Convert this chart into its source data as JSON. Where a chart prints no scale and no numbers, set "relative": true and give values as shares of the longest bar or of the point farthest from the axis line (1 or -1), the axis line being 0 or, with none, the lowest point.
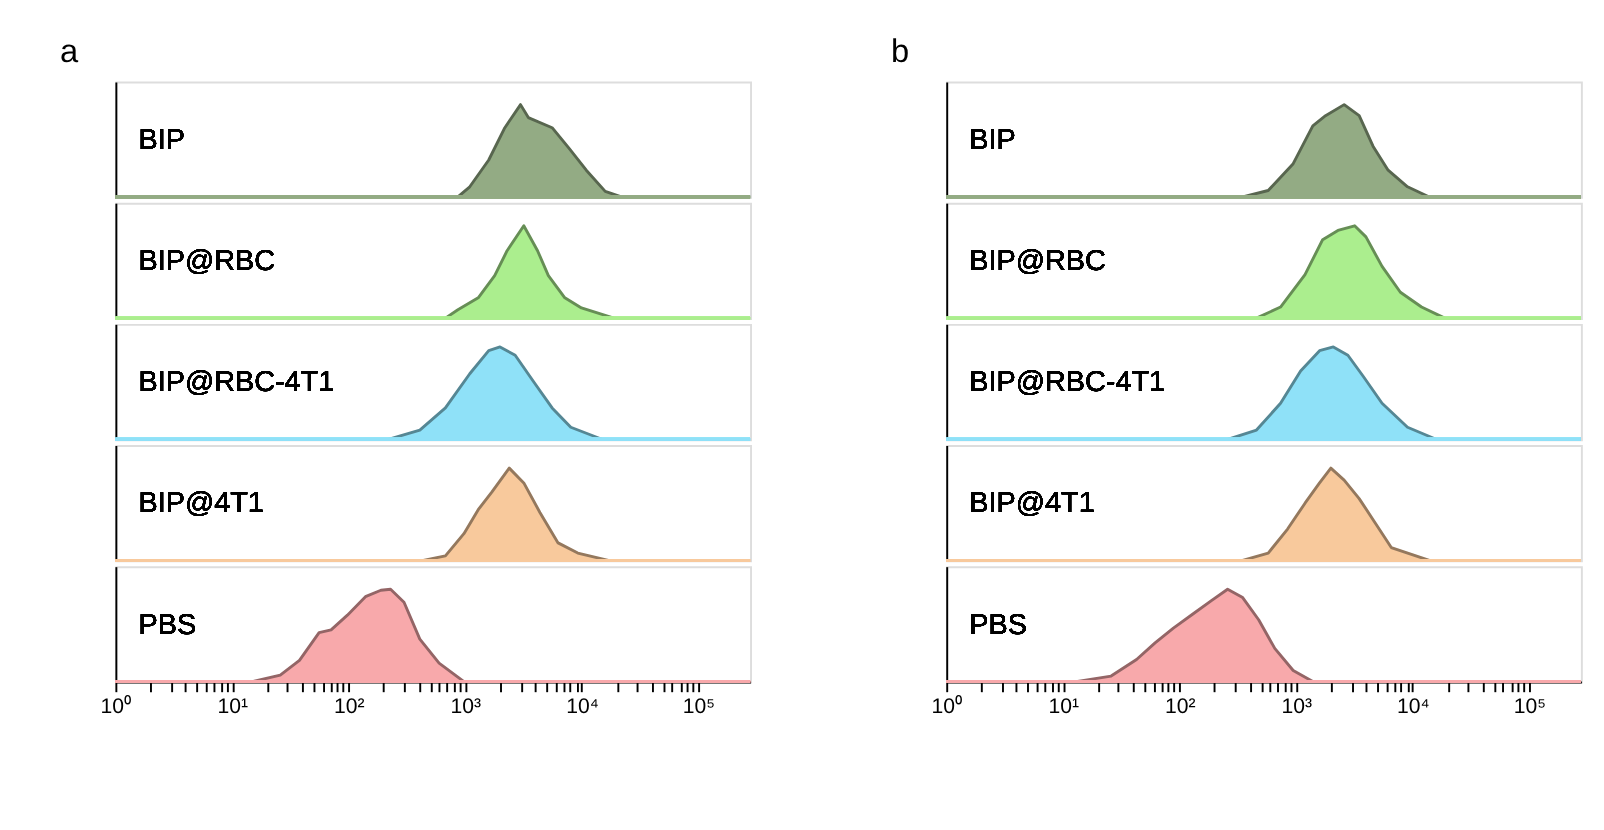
{
  "chart_data": [
    {
      "type": "area",
      "title": "a",
      "relative": true,
      "log": "x",
      "xlim": [
        1,
        280000
      ],
      "tick_labels": false,
      "series": [
        {
          "name": "BIP",
          "color": "#93ab84",
          "x": [
            870,
            1100,
            1600,
            2200,
            3000,
            3500,
            5600,
            7900,
            11000,
            16000,
            22000
          ],
          "values": [
            0,
            0.11,
            0.4,
            0.75,
            1,
            0.86,
            0.75,
            0.52,
            0.29,
            0.06,
            0
          ]
        }
      ]
    },
    {
      "type": "area",
      "relative": true,
      "log": "x",
      "xlim": [
        1,
        280000
      ],
      "tick_labels": false,
      "series": [
        {
          "name": "BIP@RBC",
          "color": "#abee8e",
          "x": [
            680,
            870,
            1300,
            1800,
            2300,
            3200,
            4200,
            5200,
            7200,
            10000,
            19000
          ],
          "values": [
            0,
            0.09,
            0.22,
            0.46,
            0.73,
            1,
            0.73,
            0.46,
            0.22,
            0.11,
            0
          ]
        }
      ]
    },
    {
      "type": "area",
      "relative": true,
      "log": "x",
      "xlim": [
        1,
        280000
      ],
      "tick_labels": false,
      "series": [
        {
          "name": "BIP@RBC-4T1",
          "color": "#8fe1f8",
          "x": [
            220,
            410,
            680,
            1100,
            1600,
            2000,
            2700,
            3900,
            5600,
            8100,
            15000
          ],
          "values": [
            0,
            0.1,
            0.34,
            0.71,
            0.96,
            1,
            0.91,
            0.62,
            0.34,
            0.13,
            0
          ]
        }
      ]
    },
    {
      "type": "area",
      "relative": true,
      "log": "x",
      "xlim": [
        1,
        280000
      ],
      "tick_labels": false,
      "series": [
        {
          "name": "BIP@4T1",
          "color": "#f8c99c",
          "x": [
            440,
            680,
            980,
            1300,
            1700,
            2400,
            3200,
            4400,
            6300,
            9300,
            17000
          ],
          "values": [
            0,
            0.05,
            0.29,
            0.55,
            0.74,
            1,
            0.84,
            0.52,
            0.19,
            0.08,
            0
          ]
        }
      ]
    },
    {
      "type": "area",
      "relative": true,
      "log": "x",
      "xlim": [
        1,
        280000
      ],
      "tick_labels": "x",
      "xticks": [
        {
          "value": 1,
          "label": "10⁰"
        },
        {
          "value": 2,
          "label": null
        },
        {
          "value": 3,
          "label": null
        },
        {
          "value": 4,
          "label": null
        },
        {
          "value": 5,
          "label": null
        },
        {
          "value": 6,
          "label": null
        },
        {
          "value": 7,
          "label": null
        },
        {
          "value": 8,
          "label": null
        },
        {
          "value": 9,
          "label": null
        },
        {
          "value": 10,
          "label": "10¹"
        },
        {
          "value": 20,
          "label": null
        },
        {
          "value": 30,
          "label": null
        },
        {
          "value": 40,
          "label": null
        },
        {
          "value": 50,
          "label": null
        },
        {
          "value": 60,
          "label": null
        },
        {
          "value": 70,
          "label": null
        },
        {
          "value": 80,
          "label": null
        },
        {
          "value": 90,
          "label": null
        },
        {
          "value": 100,
          "label": "10²"
        },
        {
          "value": 200,
          "label": null
        },
        {
          "value": 300,
          "label": null
        },
        {
          "value": 400,
          "label": null
        },
        {
          "value": 500,
          "label": null
        },
        {
          "value": 600,
          "label": null
        },
        {
          "value": 700,
          "label": null
        },
        {
          "value": 800,
          "label": null
        },
        {
          "value": 900,
          "label": null
        },
        {
          "value": 1000,
          "label": "10³"
        },
        {
          "value": 2000,
          "label": null
        },
        {
          "value": 3000,
          "label": null
        },
        {
          "value": 4000,
          "label": null
        },
        {
          "value": 5000,
          "label": null
        },
        {
          "value": 6000,
          "label": null
        },
        {
          "value": 7000,
          "label": null
        },
        {
          "value": 8000,
          "label": null
        },
        {
          "value": 9000,
          "label": null
        },
        {
          "value": 10000,
          "label": "10⁴"
        },
        {
          "value": 20000,
          "label": null
        },
        {
          "value": 30000,
          "label": null
        },
        {
          "value": 40000,
          "label": null
        },
        {
          "value": 50000,
          "label": null
        },
        {
          "value": 60000,
          "label": null
        },
        {
          "value": 70000,
          "label": null
        },
        {
          "value": 80000,
          "label": null
        },
        {
          "value": 90000,
          "label": null
        },
        {
          "value": 100000,
          "label": "10⁵"
        }
      ],
      "series": [
        {
          "name": "PBS",
          "color": "#f8a9ab",
          "x": [
            15,
            26,
            38,
            56,
            71,
            98,
            140,
            190,
            230,
            300,
            410,
            600,
            980
          ],
          "values": [
            0,
            0.07,
            0.23,
            0.53,
            0.56,
            0.72,
            0.92,
            0.99,
            1,
            0.86,
            0.46,
            0.2,
            0
          ]
        }
      ]
    },
    {
      "type": "area",
      "title": "b",
      "relative": true,
      "log": "x",
      "xlim": [
        1,
        280000
      ],
      "tick_labels": false,
      "series": [
        {
          "name": "BIP",
          "color": "#93ab84",
          "x": [
            350,
            580,
            950,
            1400,
            1800,
            2600,
            3500,
            4600,
            6200,
            9100,
            14000
          ],
          "values": [
            0,
            0.07,
            0.36,
            0.77,
            0.88,
            1,
            0.88,
            0.55,
            0.29,
            0.11,
            0
          ]
        }
      ]
    },
    {
      "type": "area",
      "relative": true,
      "log": "x",
      "xlim": [
        1,
        280000
      ],
      "tick_labels": false,
      "series": [
        {
          "name": "BIP@RBC",
          "color": "#abee8e",
          "x": [
            460,
            740,
            1200,
            1700,
            2300,
            3200,
            4000,
            5500,
            7900,
            12000,
            19000
          ],
          "values": [
            0,
            0.12,
            0.47,
            0.85,
            0.95,
            1,
            0.88,
            0.56,
            0.28,
            0.12,
            0
          ]
        }
      ]
    },
    {
      "type": "area",
      "relative": true,
      "log": "x",
      "xlim": [
        1,
        280000
      ],
      "tick_labels": false,
      "series": [
        {
          "name": "BIP@RBC-4T1",
          "color": "#8fe1f8",
          "x": [
            260,
            460,
            740,
            1100,
            1600,
            2100,
            2800,
            3800,
            5500,
            9100,
            16000
          ],
          "values": [
            0,
            0.1,
            0.39,
            0.74,
            0.96,
            1,
            0.91,
            0.68,
            0.39,
            0.13,
            0
          ]
        }
      ]
    },
    {
      "type": "area",
      "relative": true,
      "log": "x",
      "xlim": [
        1,
        280000
      ],
      "tick_labels": false,
      "series": [
        {
          "name": "BIP@4T1",
          "color": "#f8c99c",
          "x": [
            350,
            580,
            850,
            1200,
            1600,
            2000,
            2600,
            3500,
            4900,
            6600,
            14000
          ],
          "values": [
            0,
            0.08,
            0.34,
            0.62,
            0.84,
            1,
            0.87,
            0.67,
            0.39,
            0.14,
            0
          ]
        }
      ]
    },
    {
      "type": "area",
      "relative": true,
      "log": "x",
      "xlim": [
        1,
        280000
      ],
      "tick_labels": "x",
      "xticks": [
        {
          "value": 1,
          "label": "10⁰"
        },
        {
          "value": 2,
          "label": null
        },
        {
          "value": 3,
          "label": null
        },
        {
          "value": 4,
          "label": null
        },
        {
          "value": 5,
          "label": null
        },
        {
          "value": 6,
          "label": null
        },
        {
          "value": 7,
          "label": null
        },
        {
          "value": 8,
          "label": null
        },
        {
          "value": 9,
          "label": null
        },
        {
          "value": 10,
          "label": "10¹"
        },
        {
          "value": 20,
          "label": null
        },
        {
          "value": 30,
          "label": null
        },
        {
          "value": 40,
          "label": null
        },
        {
          "value": 50,
          "label": null
        },
        {
          "value": 60,
          "label": null
        },
        {
          "value": 70,
          "label": null
        },
        {
          "value": 80,
          "label": null
        },
        {
          "value": 90,
          "label": null
        },
        {
          "value": 100,
          "label": "10²"
        },
        {
          "value": 200,
          "label": null
        },
        {
          "value": 300,
          "label": null
        },
        {
          "value": 400,
          "label": null
        },
        {
          "value": 500,
          "label": null
        },
        {
          "value": 600,
          "label": null
        },
        {
          "value": 700,
          "label": null
        },
        {
          "value": 800,
          "label": null
        },
        {
          "value": 900,
          "label": null
        },
        {
          "value": 1000,
          "label": "10³"
        },
        {
          "value": 2000,
          "label": null
        },
        {
          "value": 3000,
          "label": null
        },
        {
          "value": 4000,
          "label": null
        },
        {
          "value": 5000,
          "label": null
        },
        {
          "value": 6000,
          "label": null
        },
        {
          "value": 7000,
          "label": null
        },
        {
          "value": 8000,
          "label": null
        },
        {
          "value": 9000,
          "label": null
        },
        {
          "value": 10000,
          "label": "10⁴"
        },
        {
          "value": 20000,
          "label": null
        },
        {
          "value": 30000,
          "label": null
        },
        {
          "value": 40000,
          "label": null
        },
        {
          "value": 50000,
          "label": null
        },
        {
          "value": 60000,
          "label": null
        },
        {
          "value": 70000,
          "label": null
        },
        {
          "value": 80000,
          "label": null
        },
        {
          "value": 90000,
          "label": null
        },
        {
          "value": 100000,
          "label": "10⁵"
        }
      ],
      "series": [
        {
          "name": "PBS",
          "color": "#f8a9ab",
          "x": [
            13,
            26,
            43,
            62,
            89,
            130,
            190,
            260,
            350,
            480,
            660,
            950,
            1400
          ],
          "values": [
            0,
            0.06,
            0.24,
            0.42,
            0.58,
            0.73,
            0.88,
            1,
            0.91,
            0.67,
            0.36,
            0.12,
            0
          ]
        }
      ]
    }
  ]
}
